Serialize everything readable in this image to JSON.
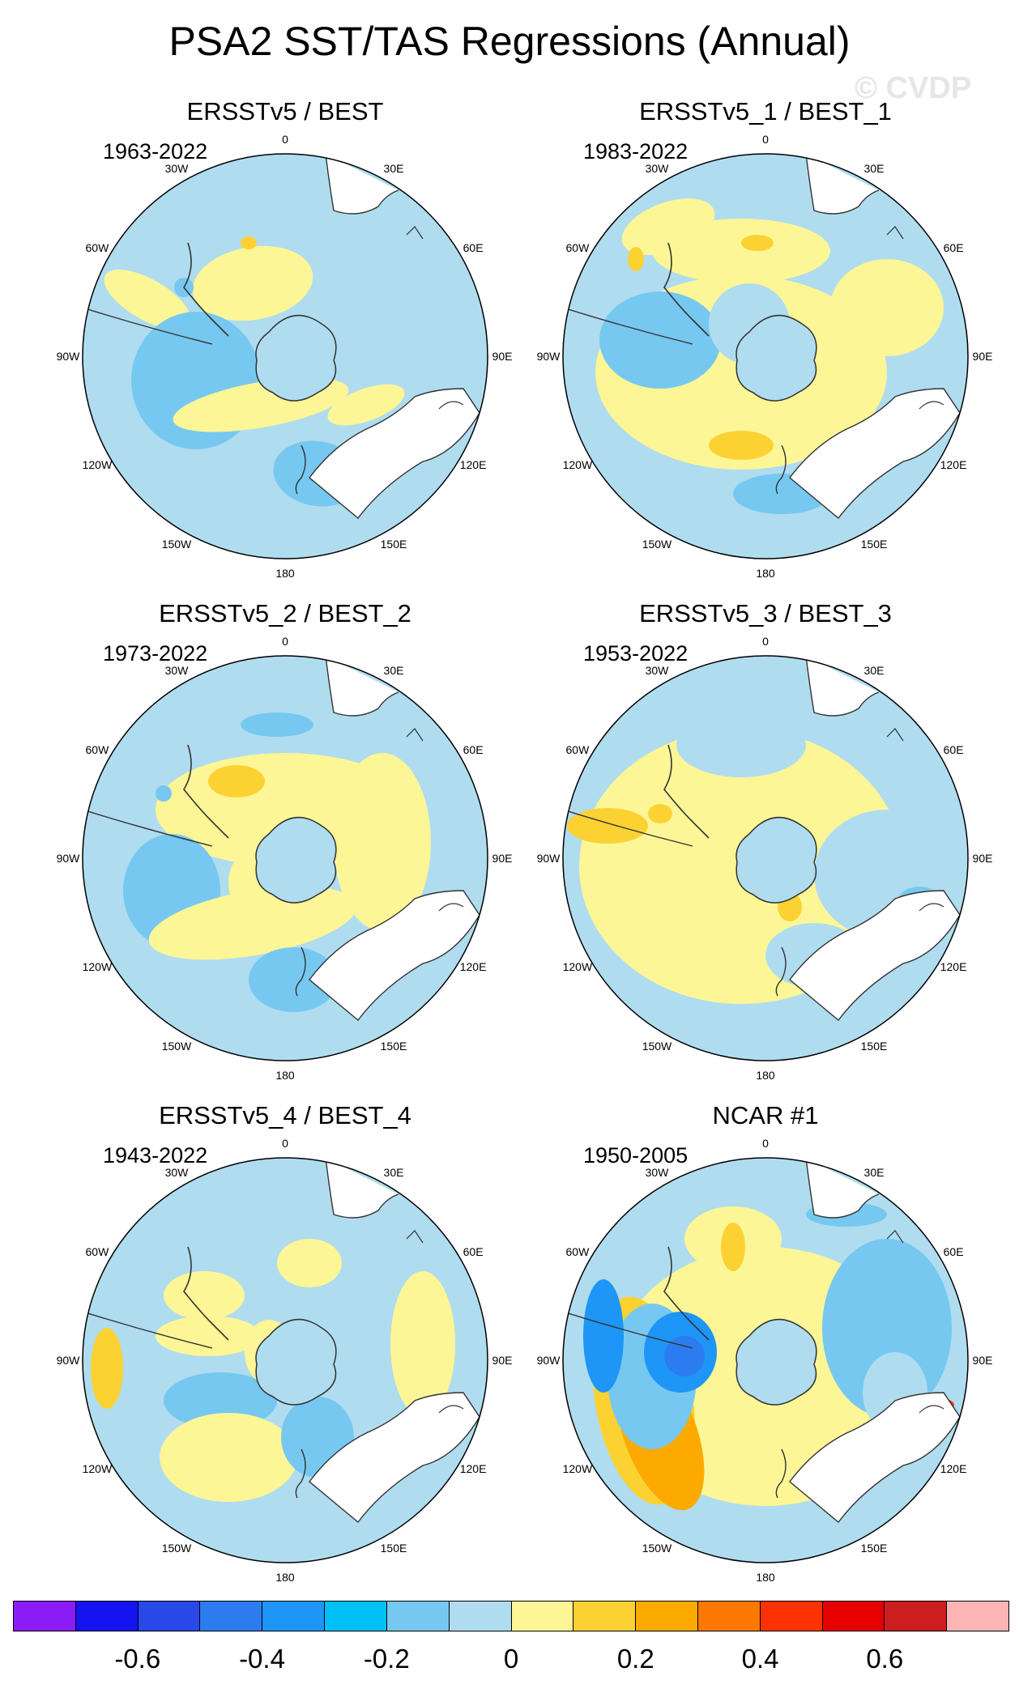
{
  "title": "PSA2 SST/TAS Regressions (Annual)",
  "watermark": "© CVDP",
  "lon_labels": {
    "top": "0",
    "n30e": "30E",
    "n60e": "60E",
    "e90": "90E",
    "s120e": "120E",
    "s150e": "150E",
    "bottom": "180",
    "s150w": "150W",
    "s120w": "120W",
    "w90": "90W",
    "n60w": "60W",
    "n30w": "30W"
  },
  "panels": [
    {
      "title": "ERSSTv5 / BEST",
      "years": "1963-2022",
      "pattern": "p1"
    },
    {
      "title": "ERSSTv5_1 / BEST_1",
      "years": "1983-2022",
      "pattern": "p2"
    },
    {
      "title": "ERSSTv5_2 / BEST_2",
      "years": "1973-2022",
      "pattern": "p3"
    },
    {
      "title": "ERSSTv5_3 / BEST_3",
      "years": "1953-2022",
      "pattern": "p4"
    },
    {
      "title": "ERSSTv5_4 / BEST_4",
      "years": "1943-2022",
      "pattern": "p5"
    },
    {
      "title": "NCAR #1",
      "years": "1950-2005",
      "pattern": "p6"
    }
  ],
  "colorbar": {
    "colors": [
      "#8c1cf5",
      "#1414f0",
      "#2848e8",
      "#2c7cf0",
      "#1e96f8",
      "#00c0f8",
      "#76c8f0",
      "#b0dcf0",
      "#fcf696",
      "#fcd232",
      "#fcaa00",
      "#fc7800",
      "#fc3200",
      "#e60000",
      "#cc1e1e",
      "#fcb4b4"
    ],
    "labels": [
      "-0.6",
      "-0.4",
      "-0.2",
      "0",
      "0.2",
      "0.4",
      "0.6"
    ]
  }
}
